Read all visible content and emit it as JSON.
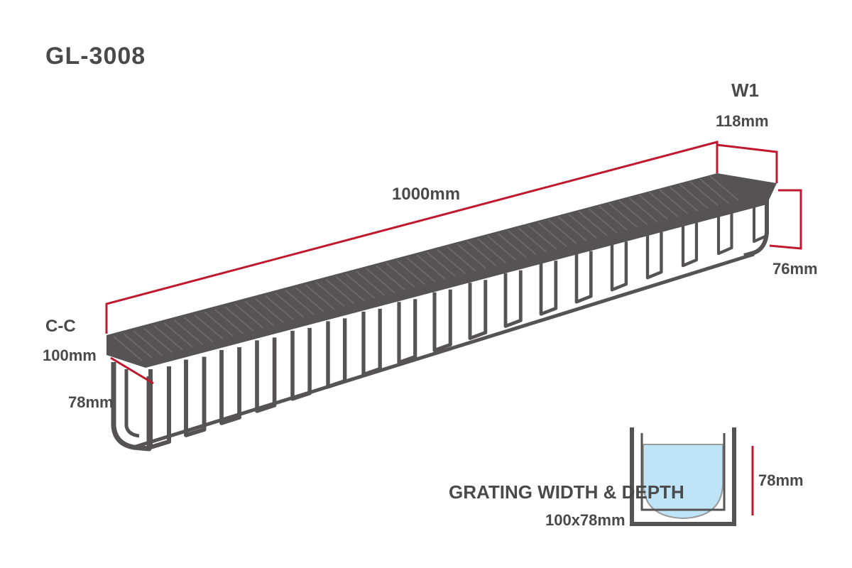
{
  "diagram": {
    "product_code": "GL-3008",
    "top_mark": "W1",
    "top_width": "118mm",
    "length": "1000mm",
    "right_height": "76mm",
    "left_mark": "C-C",
    "left_width": "100mm",
    "left_height": "78mm",
    "cross_section_label": "GRATING WIDTH & DEPTH",
    "cross_section_sublabel": "100x78mm",
    "cross_section_height": "78mm"
  },
  "colors": {
    "body": "#555354",
    "dimension": "#c0182e",
    "water": "#bfe4f8",
    "text": "#4a4a4a"
  }
}
